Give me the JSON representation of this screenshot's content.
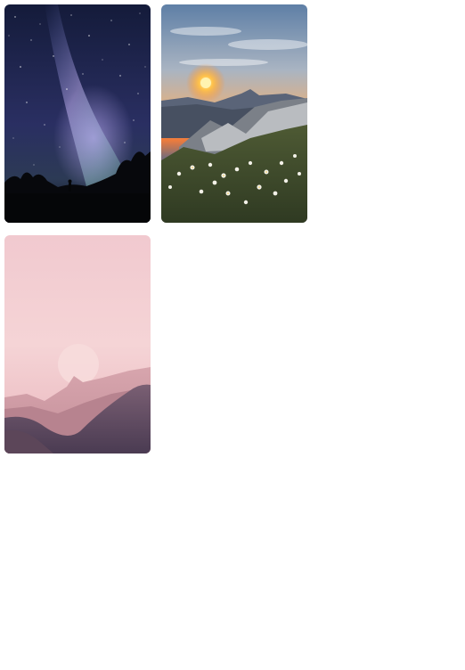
{
  "gallery": {
    "images": [
      {
        "subject": "milky-way-night-sky"
      },
      {
        "subject": "mountain-sunset-wildflowers"
      },
      {
        "subject": "pink-misty-mountains-moon"
      }
    ]
  }
}
